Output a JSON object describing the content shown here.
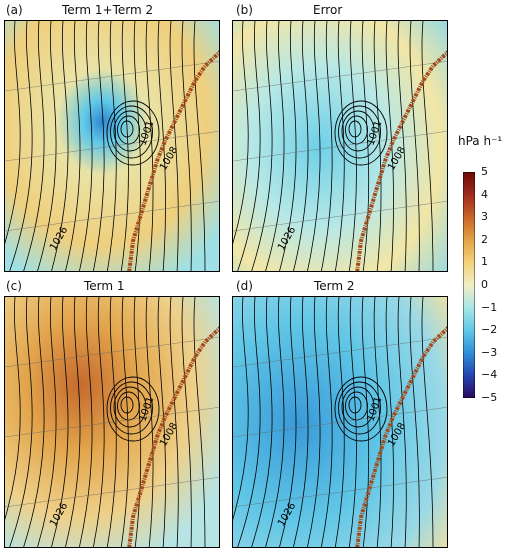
{
  "figure": {
    "colorbar": {
      "unit": "hPa h⁻¹",
      "ticks": [
        "5",
        "4",
        "3",
        "2",
        "1",
        "0",
        "−1",
        "−2",
        "−3",
        "−4",
        "−5"
      ],
      "range": [
        -5,
        5
      ],
      "colors": [
        "#2a0a5c",
        "#2444b0",
        "#2f8fd8",
        "#5fc8e8",
        "#a8e6e8",
        "#f2eec4",
        "#f3d27a",
        "#e3a244",
        "#c76528",
        "#9e2b1c",
        "#6b0a0a"
      ]
    },
    "contour_labels": [
      "1026",
      "1008",
      "1001"
    ]
  },
  "chart_data": [
    {
      "type": "heatmap",
      "letter": "(a)",
      "title": "Term 1+Term 2",
      "contour_labels": [
        "1026",
        "1008",
        "1001"
      ],
      "colorbar_range": [
        -5,
        5
      ]
    },
    {
      "type": "heatmap",
      "letter": "(b)",
      "title": "Error",
      "contour_labels": [
        "1026",
        "1008",
        "1001"
      ],
      "colorbar_range": [
        -5,
        5
      ]
    },
    {
      "type": "heatmap",
      "letter": "(c)",
      "title": "Term 1",
      "contour_labels": [
        "1026",
        "1008",
        "1001"
      ],
      "colorbar_range": [
        -5,
        5
      ]
    },
    {
      "type": "heatmap",
      "letter": "(d)",
      "title": "Term 2",
      "contour_labels": [
        "1026",
        "1008",
        "1001"
      ],
      "colorbar_range": [
        -5,
        5
      ]
    }
  ]
}
